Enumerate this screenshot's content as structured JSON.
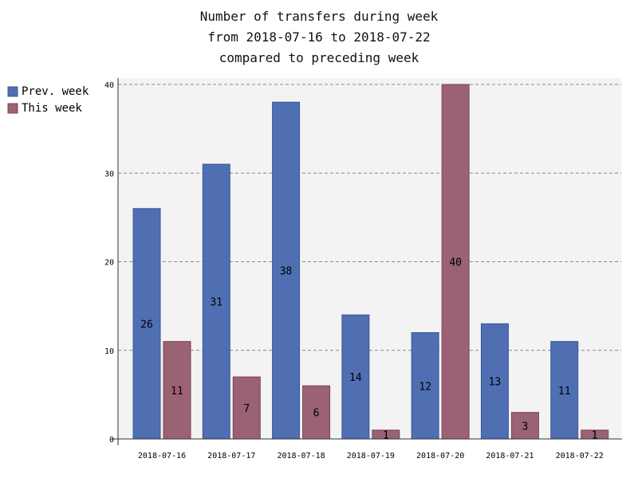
{
  "chart_data": {
    "type": "bar",
    "title_lines": [
      "Number of transfers during week",
      "from 2018-07-16 to 2018-07-22",
      "compared to preceding week"
    ],
    "categories": [
      "2018-07-16",
      "2018-07-17",
      "2018-07-18",
      "2018-07-19",
      "2018-07-20",
      "2018-07-21",
      "2018-07-22"
    ],
    "series": [
      {
        "name": "Prev. week",
        "values": [
          26,
          31,
          38,
          14,
          12,
          13,
          11
        ],
        "color": "#4f6fb2"
      },
      {
        "name": "This week",
        "values": [
          11,
          7,
          6,
          1,
          40,
          3,
          1
        ],
        "color": "#9a6273"
      }
    ],
    "ylim": [
      0,
      40
    ],
    "yticks": [
      0,
      10,
      20,
      30,
      40
    ],
    "grid": true,
    "legend": "top-left",
    "background_color": "#f3f3f3"
  }
}
